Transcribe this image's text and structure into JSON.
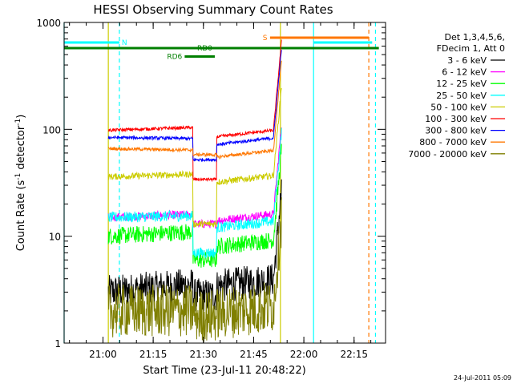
{
  "chart_data": {
    "type": "line",
    "title": "HESSI Observing Summary Count Rates",
    "xlabel": "Start Time (23-Jul-11 20:48:22)",
    "ylabel_main": "Count Rate (s",
    "ylabel_exp1": "-1",
    "ylabel_mid": " detector",
    "ylabel_exp2": "-1",
    "ylabel_close": ")",
    "yscale": "log",
    "ylim": [
      1,
      1000
    ],
    "xlim_minutes": [
      0,
      96
    ],
    "x_ticks": [
      {
        "minute": 11.6,
        "label": "21:00"
      },
      {
        "minute": 26.6,
        "label": "21:15"
      },
      {
        "minute": 41.6,
        "label": "21:30"
      },
      {
        "minute": 56.6,
        "label": "21:45"
      },
      {
        "minute": 71.6,
        "label": "22:00"
      },
      {
        "minute": 86.6,
        "label": "22:15"
      }
    ],
    "y_ticks": [
      {
        "value": 1,
        "label": "1"
      },
      {
        "value": 10,
        "label": "10"
      },
      {
        "value": 100,
        "label": "100"
      },
      {
        "value": 1000,
        "label": "1000"
      }
    ],
    "legend_header": [
      "Det 1,3,4,5,6,",
      "FDecim 1, Att 0"
    ],
    "legend_position": "right",
    "series": [
      {
        "name": "3 - 6 keV",
        "color": "#000000",
        "levels": [
          3,
          3.5,
          2.8,
          3.4
        ],
        "noise": 0.16
      },
      {
        "name": "6 - 12 keV",
        "color": "#ff00ff",
        "levels": [
          15,
          16,
          13,
          14
        ],
        "noise": 0.04
      },
      {
        "name": "12 - 25 keV",
        "color": "#00ff00",
        "levels": [
          10,
          11,
          6,
          8
        ],
        "noise": 0.08
      },
      {
        "name": "25 - 50 keV",
        "color": "#00ffff",
        "levels": [
          15,
          15.5,
          7,
          12
        ],
        "noise": 0.05
      },
      {
        "name": "50 - 100 keV",
        "color": "#cccc00",
        "levels": [
          36,
          38,
          13,
          32
        ],
        "noise": 0.03
      },
      {
        "name": "100 - 300 keV",
        "color": "#ff0000",
        "levels": [
          98,
          104,
          34,
          85
        ],
        "noise": 0.015
      },
      {
        "name": "300 - 800 keV",
        "color": "#0000ff",
        "levels": [
          84,
          82,
          52,
          72
        ],
        "noise": 0.015
      },
      {
        "name": "800 - 7000 keV",
        "color": "#ff7700",
        "levels": [
          66,
          64,
          58,
          55
        ],
        "noise": 0.015
      },
      {
        "name": "7000 - 20000 keV",
        "color": "#7f7f00",
        "levels": [
          2.0,
          2.0,
          1.8,
          1.9
        ],
        "noise": 0.25
      }
    ],
    "mode_bars": [
      {
        "label": "N",
        "color": "#00ffff",
        "y": 650,
        "start": 0,
        "end": 16.5,
        "label_at": 18.0
      },
      {
        "label": "",
        "color": "#00ffff",
        "y": 650,
        "start": 74.5,
        "end": 92,
        "label_at": null
      },
      {
        "label": "S",
        "color": "#ff7700",
        "y": 720,
        "start": 61.5,
        "end": 91,
        "label_at": 60.0
      },
      {
        "label": "RD0",
        "color": "#007f00",
        "y": 575,
        "start": 0,
        "end": 94,
        "label_at": 42.0
      },
      {
        "label": "RD6",
        "color": "#007f00",
        "y": 480,
        "start": 36,
        "end": 45,
        "label_at": 33.0
      }
    ],
    "vlines": [
      {
        "minute": 0,
        "color": "#00ffff",
        "dash": false
      },
      {
        "minute": 16.5,
        "color": "#00ffff",
        "dash": true
      },
      {
        "minute": 74.5,
        "color": "#00ffff",
        "dash": false
      },
      {
        "minute": 93,
        "color": "#00ffff",
        "dash": true
      },
      {
        "minute": 13.2,
        "color": "#cccc00",
        "dash": false
      },
      {
        "minute": 64.6,
        "color": "#cccc00",
        "dash": false
      },
      {
        "minute": 91,
        "color": "#ff7700",
        "dash": true
      }
    ],
    "timestamp": "24-Jul-2011 05:09"
  }
}
